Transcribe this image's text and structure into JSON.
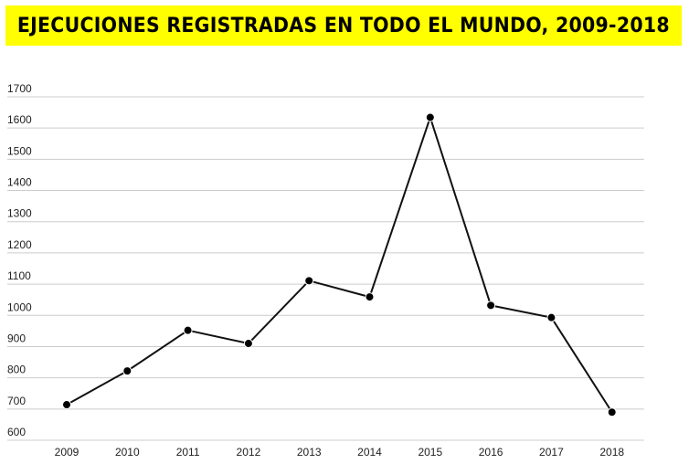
{
  "chart_data": {
    "type": "line",
    "title": "EJECUCIONES REGISTRADAS EN TODO EL MUNDO, 2009-2018",
    "x": [
      "2009",
      "2010",
      "2011",
      "2012",
      "2013",
      "2014",
      "2015",
      "2016",
      "2017",
      "2018"
    ],
    "series": [
      {
        "values": [
          714,
          822,
          952,
          910,
          1111,
          1059,
          1634,
          1032,
          993,
          690
        ]
      }
    ],
    "yticks": [
      600,
      700,
      800,
      900,
      1000,
      1100,
      1200,
      1300,
      1400,
      1500,
      1600,
      1700
    ],
    "ylim": [
      600,
      1700
    ],
    "grid": true,
    "colors": {
      "line": "#111111",
      "point": "#000000",
      "grid": "#cccccc",
      "title_background": "#ffff00"
    }
  }
}
